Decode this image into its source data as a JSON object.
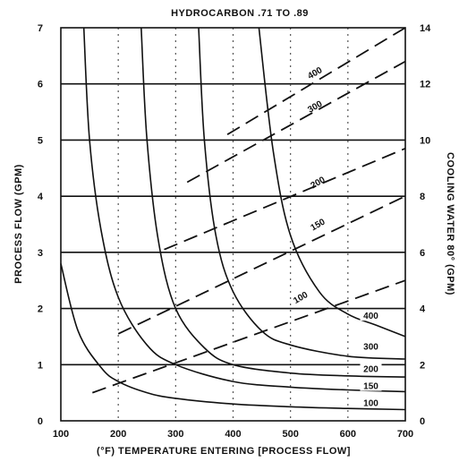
{
  "chart_data": {
    "type": "line",
    "title": "HYDROCARBON .71 TO .89",
    "xlabel": "(°F) TEMPERATURE ENTERING [PROCESS FLOW]",
    "ylabel": "PROCESS FLOW (GPM)",
    "y2label": "COOLING WATER 80° (GPM)",
    "xlim": [
      100,
      700
    ],
    "ylim": [
      0,
      7
    ],
    "y2lim": [
      0,
      14
    ],
    "xticks": [
      "100",
      "200",
      "300",
      "400",
      "500",
      "600",
      "700"
    ],
    "yticks": [
      "0",
      "1",
      "2",
      "3",
      "4",
      "5",
      "6",
      "7"
    ],
    "y2ticks": [
      "0",
      "2",
      "4",
      "6",
      "8",
      "10",
      "12",
      "14"
    ],
    "grid": true,
    "series": [
      {
        "name": "100",
        "style": "solid",
        "axis": "left",
        "x": [
          100,
          130,
          170,
          200,
          250,
          300,
          400,
          500,
          600,
          700
        ],
        "y": [
          2.8,
          1.6,
          0.95,
          0.7,
          0.5,
          0.4,
          0.3,
          0.25,
          0.22,
          0.2
        ]
      },
      {
        "name": "150",
        "style": "solid",
        "axis": "left",
        "x": [
          140,
          150,
          170,
          200,
          250,
          300,
          400,
          500,
          600,
          700
        ],
        "y": [
          7.0,
          5.0,
          3.4,
          2.2,
          1.35,
          1.0,
          0.7,
          0.6,
          0.55,
          0.52
        ]
      },
      {
        "name": "200",
        "style": "solid",
        "axis": "left",
        "x": [
          240,
          250,
          270,
          300,
          350,
          400,
          500,
          600,
          700
        ],
        "y": [
          7.0,
          5.0,
          3.2,
          2.0,
          1.3,
          1.0,
          0.85,
          0.8,
          0.78
        ]
      },
      {
        "name": "300",
        "style": "solid",
        "axis": "left",
        "x": [
          340,
          350,
          370,
          400,
          450,
          500,
          600,
          700
        ],
        "y": [
          7.0,
          5.0,
          3.3,
          2.3,
          1.6,
          1.35,
          1.15,
          1.1
        ]
      },
      {
        "name": "400",
        "style": "solid",
        "axis": "left",
        "x": [
          445,
          470,
          500,
          550,
          600,
          650,
          700
        ],
        "y": [
          7.0,
          4.8,
          3.3,
          2.3,
          1.9,
          1.7,
          1.5
        ]
      },
      {
        "name": "100",
        "style": "dashed",
        "axis": "right",
        "x": [
          155,
          700
        ],
        "y": [
          1.0,
          5.0
        ]
      },
      {
        "name": "150",
        "style": "dashed",
        "axis": "right",
        "x": [
          200,
          700
        ],
        "y": [
          3.1,
          8.0
        ]
      },
      {
        "name": "200",
        "style": "dashed",
        "axis": "right",
        "x": [
          280,
          700
        ],
        "y": [
          6.1,
          9.7
        ]
      },
      {
        "name": "300",
        "style": "dashed",
        "axis": "right",
        "x": [
          320,
          700
        ],
        "y": [
          8.5,
          12.8
        ]
      },
      {
        "name": "400",
        "style": "dashed",
        "axis": "right",
        "x": [
          390,
          700
        ],
        "y": [
          10.2,
          14.0
        ]
      }
    ],
    "labels": {
      "solid": [
        {
          "text": "100",
          "x": 640,
          "y": 0.25
        },
        {
          "text": "150",
          "x": 640,
          "y": 0.55
        },
        {
          "text": "200",
          "x": 640,
          "y": 0.85
        },
        {
          "text": "300",
          "x": 640,
          "y": 1.25
        },
        {
          "text": "400",
          "x": 640,
          "y": 1.8
        }
      ],
      "dashed": [
        {
          "text": "100",
          "x": 520,
          "y2": 4.3
        },
        {
          "text": "150",
          "x": 550,
          "y2": 6.9
        },
        {
          "text": "200",
          "x": 550,
          "y2": 8.4
        },
        {
          "text": "300",
          "x": 545,
          "y2": 11.1
        },
        {
          "text": "400",
          "x": 545,
          "y2": 12.3
        }
      ]
    }
  }
}
